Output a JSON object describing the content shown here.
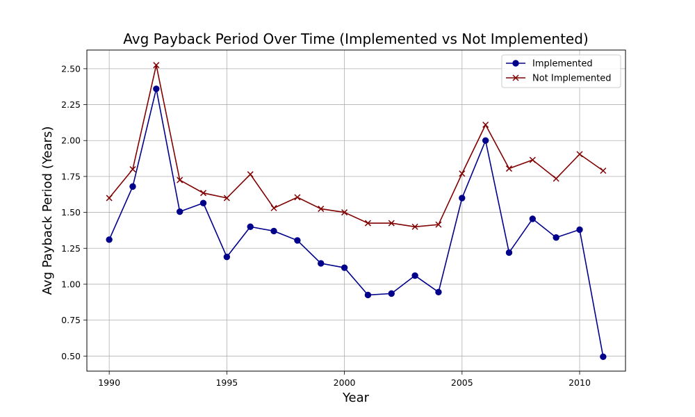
{
  "chart_data": {
    "type": "line",
    "title": "Avg Payback Period Over Time (Implemented vs Not Implemented)",
    "xlabel": "Year",
    "ylabel": "Avg Payback Period (Years)",
    "x": [
      1990,
      1991,
      1992,
      1993,
      1994,
      1995,
      1996,
      1997,
      1998,
      1999,
      2000,
      2001,
      2002,
      2003,
      2004,
      2005,
      2006,
      2007,
      2008,
      2009,
      2010,
      2011
    ],
    "xlim": [
      1989.05,
      2011.95
    ],
    "ylim": [
      0.395,
      2.63
    ],
    "x_ticks": [
      1990,
      1995,
      2000,
      2005,
      2010
    ],
    "y_ticks": [
      0.5,
      0.75,
      1.0,
      1.25,
      1.5,
      1.75,
      2.0,
      2.25,
      2.5
    ],
    "y_tick_labels": [
      "0.50",
      "0.75",
      "1.00",
      "1.25",
      "1.50",
      "1.75",
      "2.00",
      "2.25",
      "2.50"
    ],
    "grid": true,
    "legend_position": "top-right",
    "series": [
      {
        "name": "Implemented",
        "color": "#00008b",
        "marker": "circle",
        "values": [
          1.31,
          1.68,
          2.36,
          1.505,
          1.565,
          1.19,
          1.4,
          1.37,
          1.305,
          1.145,
          1.115,
          0.925,
          0.935,
          1.06,
          0.945,
          1.6,
          2.0,
          1.22,
          1.455,
          1.325,
          1.38,
          0.495
        ]
      },
      {
        "name": "Not Implemented",
        "color": "#800000",
        "marker": "x",
        "values": [
          1.6,
          1.8,
          2.525,
          1.725,
          1.635,
          1.6,
          1.765,
          1.53,
          1.605,
          1.525,
          1.5,
          1.425,
          1.425,
          1.4,
          1.415,
          1.77,
          2.11,
          1.805,
          1.865,
          1.735,
          1.905,
          1.79
        ]
      }
    ]
  }
}
